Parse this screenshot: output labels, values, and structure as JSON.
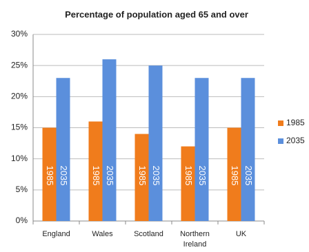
{
  "chart_data": {
    "type": "bar",
    "title": "Percentage of population aged 65 and over",
    "categories": [
      "England",
      "Wales",
      "Scotland",
      "Northern Ireland",
      "UK"
    ],
    "series": [
      {
        "name": "1985",
        "color": "#f07c1c",
        "values": [
          15,
          16,
          14,
          12,
          15
        ]
      },
      {
        "name": "2035",
        "color": "#5b8fdc",
        "values": [
          23,
          26,
          25,
          23,
          23
        ]
      }
    ],
    "ylim": [
      0,
      30
    ],
    "yticks": [
      {
        "value": 0,
        "label": "0%"
      },
      {
        "value": 5,
        "label": "5%"
      },
      {
        "value": 10,
        "label": "10%"
      },
      {
        "value": 15,
        "label": "15%"
      },
      {
        "value": 20,
        "label": "20%"
      },
      {
        "value": 25,
        "label": "25%"
      },
      {
        "value": 30,
        "label": "30%"
      }
    ],
    "grid": true,
    "legend": "right"
  }
}
